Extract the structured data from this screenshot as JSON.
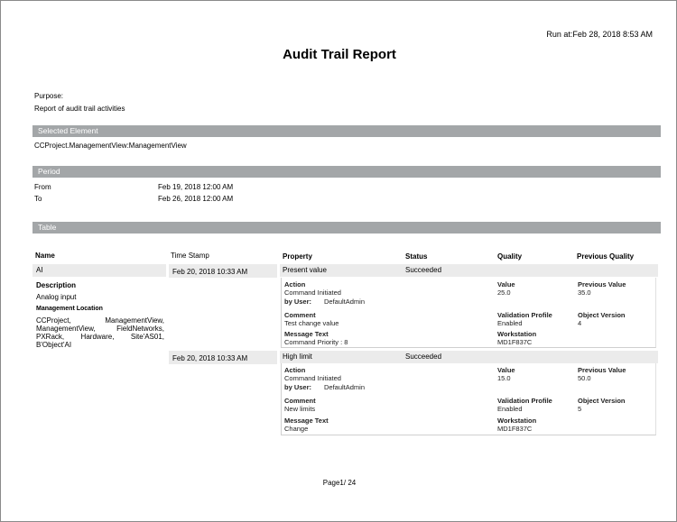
{
  "run_at": "Run at:Feb 28, 2018 8:53 AM",
  "title": "Audit Trail Report",
  "purpose": {
    "label": "Purpose:",
    "text": "Report of audit trail activities"
  },
  "selected_element": {
    "header": "Selected Element",
    "value": "CCProject.ManagementView:ManagementView"
  },
  "period": {
    "header": "Period",
    "from_label": "From",
    "from": "Feb 19, 2018 12:00 AM",
    "to_label": "To",
    "to": "Feb 26, 2018 12:00 AM"
  },
  "table": {
    "header": "Table",
    "columns": {
      "name": "Name",
      "timestamp": "Time Stamp",
      "property": "Property",
      "status": "Status",
      "quality": "Quality",
      "previous_quality": "Previous Quality"
    },
    "object": {
      "name": "AI",
      "description_label": "Description",
      "description": "Analog input",
      "location_label": "Management Location",
      "location": "CCProject, ManagementView, ManagementView, FieldNetworks, PXRack, Hardware, Site'AS01, B'Object'AI"
    },
    "labels": {
      "action": "Action",
      "by_user": "by User:",
      "comment": "Comment",
      "message_text": "Message Text",
      "value": "Value",
      "previous_value": "Previous Value",
      "validation_profile": "Validation Profile",
      "object_version": "Object Version",
      "workstation": "Workstation"
    },
    "rows": [
      {
        "timestamp": "Feb 20, 2018 10:33 AM",
        "property": "Present value",
        "status": "Succeeded",
        "action": "Command Initiated",
        "user": "DefaultAdmin",
        "comment": "Test change value",
        "message_text": "Command  Priority : 8",
        "value": "25.0",
        "previous_value": "35.0",
        "validation_profile": "Enabled",
        "object_version": "4",
        "workstation": "MD1F837C"
      },
      {
        "timestamp": "Feb 20, 2018 10:33 AM",
        "property": "High limit",
        "status": "Succeeded",
        "action": "Command Initiated",
        "user": "DefaultAdmin",
        "comment": "New limits",
        "message_text": "Change",
        "value": "15.0",
        "previous_value": "50.0",
        "validation_profile": "Enabled",
        "object_version": "5",
        "workstation": "MD1F837C"
      }
    ]
  },
  "footer": {
    "page": "Page1/ 24"
  }
}
